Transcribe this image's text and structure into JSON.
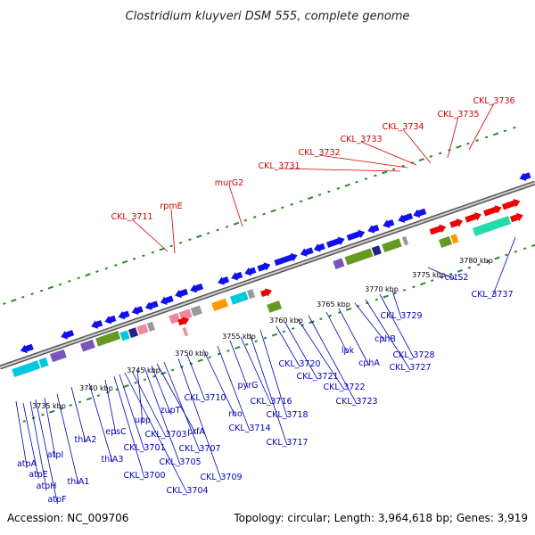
{
  "title": "Clostridium kluyveri DSM 555, complete genome",
  "footer": {
    "accession": "Accession: NC_009706",
    "summary": "Topology: circular; Length: 3,964,618 bp; Genes: 3,919"
  },
  "colors": {
    "red": "#ee0000",
    "blue": "#1010ee",
    "green": "#669922",
    "teal": "#22ddaa",
    "cyan": "#00c8e0",
    "orange": "#ff9900",
    "purple": "#7755bb",
    "pink": "#ee8899",
    "gray": "#999999",
    "navy": "#222288",
    "tick": "#2a8a2a",
    "label_red": "#d00000",
    "label_blue": "#0000bb"
  },
  "kbp_ticks": [
    "3735 kbp",
    "3740 kbp",
    "3745 kbp",
    "3750 kbp",
    "3755 kbp",
    "3760 kbp",
    "3765 kbp",
    "3770 kbp",
    "3775 kbp",
    "3780 kbp"
  ],
  "top_labels": [
    "CKL_3711",
    "rpmE",
    "murG2",
    "CKL_3731",
    "CKL_3732",
    "CKL_3733",
    "CKL_3734",
    "CKL_3735",
    "CKL_3736"
  ],
  "bottom_labels": [
    "atpA",
    "atpE",
    "atpH",
    "atpF",
    "atpI",
    "thlA1",
    "thlA2",
    "thlA3",
    "epsC",
    "CKL_3700",
    "CKL_3701",
    "CKL_3704",
    "CKL_3703",
    "upp",
    "CKL_3705",
    "zupT",
    "prfA",
    "CKL_3707",
    "CKL_3709",
    "CKL_3710",
    "rho",
    "CKL_3714",
    "pyrG",
    "CKL_3716",
    "CKL_3717",
    "CKL_3718",
    "CKL_3720",
    "CKL_3721",
    "CKL_3722",
    "CKL_3723",
    "lpk",
    "cphA",
    "cphB",
    "CKL_3727",
    "CKL_3728",
    "CKL_3729",
    "cotS2",
    "CKL_3737"
  ]
}
